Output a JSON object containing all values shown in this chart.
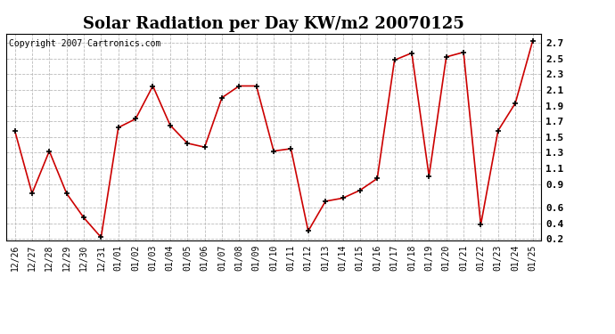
{
  "title": "Solar Radiation per Day KW/m2 20070125",
  "copyright": "Copyright 2007 Cartronics.com",
  "labels": [
    "12/26",
    "12/27",
    "12/28",
    "12/29",
    "12/30",
    "12/31",
    "01/01",
    "01/02",
    "01/03",
    "01/04",
    "01/05",
    "01/06",
    "01/07",
    "01/08",
    "01/09",
    "01/10",
    "01/11",
    "01/12",
    "01/13",
    "01/14",
    "01/15",
    "01/16",
    "01/17",
    "01/18",
    "01/19",
    "01/20",
    "01/21",
    "01/22",
    "01/23",
    "01/24",
    "01/25"
  ],
  "values": [
    1.58,
    0.78,
    1.32,
    0.78,
    0.47,
    0.22,
    1.62,
    1.73,
    2.15,
    1.65,
    1.42,
    1.37,
    2.0,
    2.15,
    2.15,
    1.32,
    1.35,
    0.3,
    0.68,
    0.72,
    0.82,
    0.97,
    2.48,
    2.57,
    1.0,
    2.52,
    2.58,
    0.38,
    1.58,
    1.93,
    2.72
  ],
  "line_color": "#cc0000",
  "marker_color": "#000000",
  "bg_color": "#ffffff",
  "grid_color": "#bbbbbb",
  "ylim_min": 0.18,
  "ylim_max": 2.82,
  "yticks": [
    0.2,
    0.4,
    0.6,
    0.9,
    1.1,
    1.3,
    1.5,
    1.7,
    1.9,
    2.1,
    2.3,
    2.5,
    2.7
  ],
  "title_fontsize": 13,
  "tick_fontsize": 7,
  "ytick_fontsize": 8,
  "copyright_fontsize": 7
}
